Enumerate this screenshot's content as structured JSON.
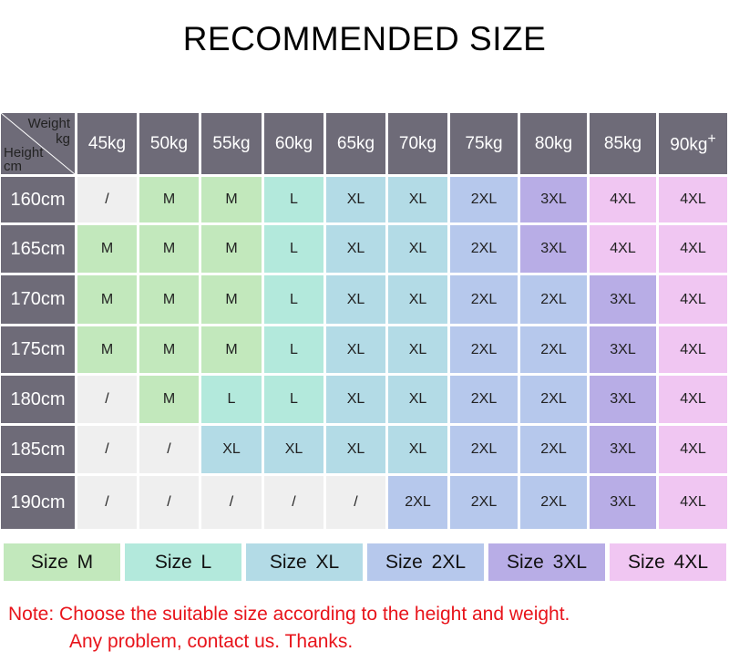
{
  "title": "RECOMMENDED SIZE",
  "corner": {
    "weight": "Weight",
    "kg": "kg",
    "height": "Height",
    "cm": "cm"
  },
  "weights": [
    "45kg",
    "50kg",
    "55kg",
    "60kg",
    "65kg",
    "70kg",
    "75kg",
    "80kg",
    "85kg",
    "90kg"
  ],
  "last_weight_suffix": "+",
  "rows": [
    {
      "height": "160cm",
      "sizes": [
        "/",
        "M",
        "M",
        "L",
        "XL",
        "XL",
        "2XL",
        "3XL",
        "4XL",
        "4XL"
      ]
    },
    {
      "height": "165cm",
      "sizes": [
        "M",
        "M",
        "M",
        "L",
        "XL",
        "XL",
        "2XL",
        "3XL",
        "4XL",
        "4XL"
      ]
    },
    {
      "height": "170cm",
      "sizes": [
        "M",
        "M",
        "M",
        "L",
        "XL",
        "XL",
        "2XL",
        "2XL",
        "3XL",
        "4XL"
      ]
    },
    {
      "height": "175cm",
      "sizes": [
        "M",
        "M",
        "M",
        "L",
        "XL",
        "XL",
        "2XL",
        "2XL",
        "3XL",
        "4XL"
      ]
    },
    {
      "height": "180cm",
      "sizes": [
        "/",
        "M",
        "L",
        "L",
        "XL",
        "XL",
        "2XL",
        "2XL",
        "3XL",
        "4XL"
      ]
    },
    {
      "height": "185cm",
      "sizes": [
        "/",
        "/",
        "XL",
        "XL",
        "XL",
        "XL",
        "2XL",
        "2XL",
        "3XL",
        "4XL"
      ]
    },
    {
      "height": "190cm",
      "sizes": [
        "/",
        "/",
        "/",
        "/",
        "/",
        "2XL",
        "2XL",
        "2XL",
        "3XL",
        "4XL"
      ]
    }
  ],
  "colors": {
    "/": "#efefef",
    "M": "#c2e8bc",
    "L": "#b3e9dc",
    "XL": "#b3dbe6",
    "2XL": "#b6c8ec",
    "3XL": "#b8ade6",
    "4XL": "#f0c6f2",
    "header": "#6e6b78",
    "note": "#e8141b"
  },
  "legend": [
    {
      "size": "M",
      "label": "Size M"
    },
    {
      "size": "L",
      "label": "Size L"
    },
    {
      "size": "XL",
      "label": "Size XL"
    },
    {
      "size": "2XL",
      "label": "Size 2XL"
    },
    {
      "size": "3XL",
      "label": "Size 3XL"
    },
    {
      "size": "4XL",
      "label": "Size 4XL"
    }
  ],
  "note": {
    "line1": "Note: Choose the suitable size according to the height and weight.",
    "line2": "Any problem, contact us. Thanks."
  }
}
